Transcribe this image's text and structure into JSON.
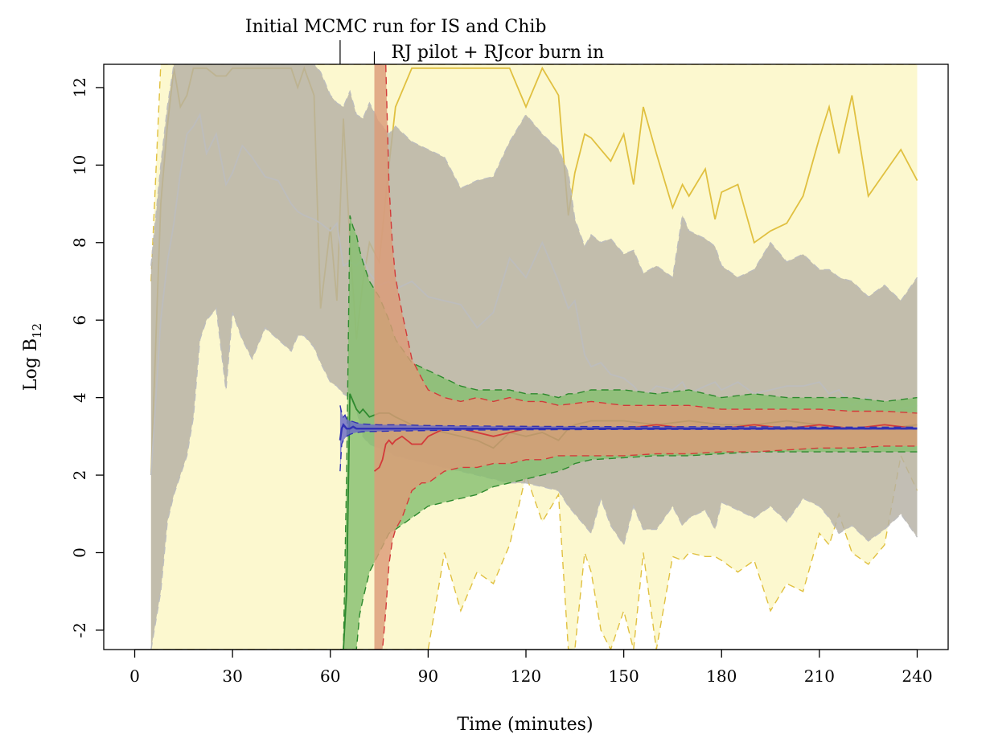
{
  "chart_data": {
    "type": "line",
    "title": "",
    "xlabel": "Time (minutes)",
    "ylabel_main": "Log B",
    "ylabel_sub": "12",
    "xlim": [
      -9.5,
      249.5
    ],
    "ylim": [
      -2.5,
      12.6
    ],
    "xticks": [
      "0",
      "30",
      "60",
      "90",
      "120",
      "150",
      "180",
      "210",
      "240"
    ],
    "xtick_values": [
      0,
      30,
      60,
      90,
      120,
      150,
      180,
      210,
      240
    ],
    "yticks": [
      "-2",
      "0",
      "2",
      "4",
      "6",
      "8",
      "10",
      "12"
    ],
    "ytick_values": [
      -2,
      0,
      2,
      4,
      6,
      8,
      10,
      12
    ],
    "grid": false,
    "annotations": [
      {
        "text": "Initial MCMC run for IS and Chib",
        "x": 63
      },
      {
        "text": "RJ pilot + RJcor burn in",
        "x": 73.5
      }
    ],
    "series": [
      {
        "color": "#e0c040",
        "band_color": "#fcf8cf",
        "x": [
          5,
          8,
          10,
          12,
          14,
          16,
          18,
          20,
          22,
          25,
          28,
          30,
          33,
          36,
          40,
          44,
          48,
          50,
          52,
          55,
          57,
          60,
          62,
          64,
          66,
          68,
          70,
          72,
          75,
          78,
          80,
          85,
          90,
          95,
          100,
          105,
          110,
          115,
          120,
          125,
          130,
          133,
          135,
          138,
          140,
          143,
          146,
          150,
          153,
          156,
          160,
          165,
          168,
          170,
          175,
          178,
          180,
          185,
          190,
          195,
          200,
          205,
          210,
          213,
          216,
          220,
          225,
          230,
          235,
          240
        ],
        "mean": [
          2,
          9,
          11,
          12.5,
          11.5,
          11.8,
          12.5,
          12.5,
          12.5,
          12.3,
          12.3,
          12.5,
          12.5,
          12.5,
          12.5,
          12.5,
          12.5,
          12,
          12.5,
          11.8,
          6.3,
          8.4,
          6.5,
          11.2,
          8,
          5.5,
          7,
          8,
          7.5,
          10,
          11.5,
          12.5,
          12.5,
          12.5,
          12.5,
          12.5,
          12.5,
          12.5,
          11.5,
          12.5,
          11.8,
          8.7,
          9.8,
          10.8,
          10.7,
          10.4,
          10.1,
          10.8,
          9.5,
          11.5,
          10.3,
          8.9,
          9.5,
          9.2,
          9.9,
          8.6,
          9.3,
          9.5,
          8,
          8.3,
          8.5,
          9.2,
          10.7,
          11.5,
          10.3,
          11.8,
          9.2,
          9.8,
          10.4,
          9.6
        ],
        "upper": [
          7,
          12.6,
          12.6,
          12.6,
          12.6,
          12.6,
          12.6,
          12.6,
          12.6,
          12.6,
          12.6,
          12.6,
          12.6,
          12.6,
          12.6,
          12.6,
          12.6,
          12.6,
          12.6,
          12.6,
          12.6,
          12.6,
          12.6,
          12.6,
          12.6,
          12.6,
          12.6,
          12.6,
          12.6,
          12.6,
          12.6,
          12.6,
          12.6,
          12.6,
          12.6,
          12.6,
          12.6,
          12.6,
          12.6,
          12.6,
          12.6,
          12.6,
          12.6,
          12.6,
          12.6,
          12.6,
          12.6,
          12.6,
          12.6,
          12.6,
          12.6,
          12.6,
          12.6,
          12.6,
          12.6,
          12.6,
          12.6,
          12.6,
          12.6,
          12.6,
          12.6,
          12.6,
          12.6,
          12.6,
          12.6,
          12.6,
          12.6,
          12.6,
          12.6,
          12.6
        ],
        "lower": [
          -2.5,
          -2.5,
          -2.5,
          -2.5,
          -2.5,
          -2.5,
          -2.5,
          -2.5,
          -2.5,
          -2.5,
          -2.5,
          -2.5,
          -2.5,
          -2.5,
          -2.5,
          -2.5,
          -2.5,
          -2.5,
          -2.5,
          -2.5,
          -2.5,
          -2.5,
          -2.5,
          -2.5,
          -2.5,
          -2.5,
          -2.5,
          -2.5,
          -2.5,
          -2.5,
          -2.5,
          -2.5,
          -2.5,
          0,
          -1.5,
          -0.5,
          -0.8,
          0.2,
          2,
          0.8,
          1.5,
          -2.5,
          -2.5,
          0,
          -0.5,
          -2,
          -2.5,
          -1.5,
          -2.5,
          0,
          -2.5,
          -0.1,
          -0.2,
          0,
          -0.1,
          -0.1,
          -0.2,
          -0.5,
          -0.2,
          -1.5,
          -0.8,
          -1,
          0.5,
          0.2,
          1,
          0,
          -0.3,
          0.2,
          2.5,
          1.6
        ]
      },
      {
        "color": "#bdbdbd",
        "band_color": "#b5b0a4",
        "x": [
          5,
          8,
          10,
          12,
          14,
          16,
          18,
          20,
          22,
          25,
          28,
          30,
          33,
          36,
          40,
          44,
          48,
          50,
          52,
          55,
          57,
          60,
          62,
          64,
          66,
          68,
          70,
          72,
          75,
          78,
          80,
          85,
          90,
          95,
          100,
          105,
          110,
          115,
          120,
          125,
          130,
          133,
          135,
          138,
          140,
          143,
          146,
          150,
          153,
          156,
          160,
          165,
          168,
          170,
          175,
          178,
          180,
          185,
          190,
          195,
          200,
          205,
          210,
          213,
          216,
          220,
          225,
          230,
          235,
          240
        ],
        "mean": [
          2,
          6,
          7.5,
          8.5,
          9.8,
          10.8,
          11,
          11.3,
          10.3,
          10.8,
          9.5,
          9.8,
          10.5,
          10.2,
          9.7,
          9.6,
          9,
          8.8,
          8.7,
          8.6,
          8.5,
          8.3,
          8.5,
          7.4,
          7.5,
          7.4,
          7.6,
          7.2,
          6.9,
          7,
          6.8,
          7,
          6.6,
          6.5,
          6.4,
          5.8,
          6.2,
          7.6,
          7.1,
          8,
          7,
          6.3,
          6.5,
          5.1,
          4.8,
          4.9,
          4.6,
          4.5,
          4.3,
          4,
          4.3,
          4.2,
          4.4,
          4.1,
          4.3,
          4.4,
          4.2,
          4.4,
          4.1,
          4.2,
          4.3,
          4.3,
          4.4,
          4.1,
          4.2,
          3.8,
          4,
          3.5,
          3.7,
          3.8
        ],
        "upper": [
          7.4,
          10,
          11.5,
          12.6,
          12.6,
          12.6,
          12.6,
          12.6,
          12.6,
          12.6,
          12.6,
          12.6,
          12.6,
          12.6,
          12.6,
          12.6,
          12.6,
          12.6,
          12.6,
          12.6,
          12.4,
          11.8,
          11.6,
          11.5,
          11.9,
          11.3,
          11.2,
          11.6,
          11.1,
          10.8,
          11.0,
          10.6,
          10.4,
          10.2,
          9.4,
          9.6,
          9.7,
          10.6,
          11.3,
          10.8,
          10.4,
          9.8,
          8.6,
          7.9,
          8.2,
          8,
          8.1,
          7.7,
          7.8,
          7.2,
          7.4,
          7.1,
          8.7,
          8.3,
          8.1,
          7.9,
          7.4,
          7.1,
          7.3,
          8.0,
          7.5,
          7.7,
          7.3,
          7.3,
          7.1,
          7,
          6.6,
          6.9,
          6.5,
          7.1
        ],
        "lower": [
          -2.5,
          -1,
          0.8,
          1.5,
          2,
          2.5,
          3.5,
          5.5,
          6,
          6.3,
          4.2,
          6.2,
          5.5,
          5,
          5.8,
          5.5,
          5.2,
          5.6,
          5.6,
          5.3,
          4.9,
          4.4,
          4.3,
          4.1,
          4,
          3.7,
          3,
          2.8,
          2.7,
          2.6,
          2.5,
          2.4,
          2.3,
          2.2,
          2.1,
          2,
          1.9,
          1.8,
          1.8,
          1.7,
          1.6,
          1.2,
          1.0,
          0.7,
          0.5,
          1.4,
          0.7,
          0.2,
          1.2,
          0.6,
          0.6,
          1.2,
          0.7,
          0.9,
          1.1,
          0.6,
          1.3,
          1.1,
          0.9,
          1.2,
          0.8,
          1.4,
          1.2,
          0.9,
          0.5,
          0.7,
          0.3,
          0.6,
          1.0,
          0.4
        ]
      },
      {
        "color": "#2e8a2e",
        "band_color": "#86c070",
        "x": [
          63,
          64,
          65,
          66,
          67,
          68,
          69,
          70,
          72,
          75,
          78,
          80,
          85,
          90,
          95,
          100,
          105,
          110,
          115,
          120,
          125,
          130,
          133,
          135,
          140,
          150,
          160,
          170,
          180,
          190,
          200,
          210,
          220,
          230,
          240
        ],
        "mean": [
          -2.5,
          -2.5,
          -1,
          4.1,
          3.9,
          3.7,
          3.6,
          3.7,
          3.5,
          3.6,
          3.6,
          3.5,
          3.3,
          3.2,
          3.1,
          3.0,
          2.9,
          2.7,
          3.1,
          3.0,
          3.1,
          2.9,
          3.2,
          3.3,
          3.4,
          3.4,
          3.3,
          3.4,
          3.3,
          3.3,
          3.4,
          3.3,
          3.2,
          3.2,
          3.3
        ],
        "upper": [
          -2.5,
          -2.5,
          2,
          8.7,
          8.4,
          8.2,
          7.8,
          7.5,
          7,
          6.6,
          6.0,
          5.5,
          4.9,
          4.7,
          4.5,
          4.3,
          4.2,
          4.2,
          4.2,
          4.1,
          4.1,
          4.0,
          4.1,
          4.1,
          4.2,
          4.2,
          4.1,
          4.2,
          4.0,
          4.1,
          4.0,
          4.0,
          4.0,
          3.9,
          4.0
        ],
        "lower": [
          -2.5,
          -2.5,
          -2.5,
          -2.5,
          -2.5,
          -2.5,
          -1.6,
          -1.2,
          -0.5,
          0.0,
          0.5,
          0.6,
          0.9,
          1.2,
          1.3,
          1.4,
          1.5,
          1.7,
          1.8,
          1.9,
          2.0,
          2.1,
          2.2,
          2.3,
          2.4,
          2.45,
          2.5,
          2.5,
          2.55,
          2.6,
          2.6,
          2.6,
          2.6,
          2.6,
          2.6
        ]
      },
      {
        "color": "#d33a3a",
        "band_color": "#dc9b78",
        "x": [
          73.5,
          75,
          76,
          77,
          78,
          79,
          80,
          82,
          85,
          88,
          90,
          95,
          100,
          105,
          110,
          115,
          120,
          125,
          130,
          140,
          150,
          160,
          170,
          180,
          190,
          200,
          210,
          220,
          230,
          240
        ],
        "mean": [
          2.1,
          2.2,
          2.4,
          2.8,
          2.9,
          2.8,
          2.9,
          3.0,
          2.8,
          2.8,
          3.0,
          3.2,
          3.2,
          3.1,
          3.0,
          3.1,
          3.2,
          3.2,
          3.2,
          3.2,
          3.2,
          3.3,
          3.2,
          3.2,
          3.3,
          3.2,
          3.3,
          3.2,
          3.3,
          3.2
        ],
        "upper": [
          12.6,
          12.6,
          12.6,
          12.6,
          9.5,
          8,
          7.1,
          6.2,
          5.0,
          4.5,
          4.2,
          4.0,
          3.9,
          4.0,
          3.9,
          4.0,
          3.9,
          3.9,
          3.8,
          3.9,
          3.8,
          3.8,
          3.8,
          3.7,
          3.7,
          3.7,
          3.7,
          3.65,
          3.65,
          3.6
        ],
        "lower": [
          -2.5,
          -2.5,
          -2.5,
          -1.5,
          -0.3,
          0.3,
          0.6,
          0.9,
          1.6,
          1.8,
          1.8,
          2.1,
          2.2,
          2.2,
          2.3,
          2.3,
          2.4,
          2.4,
          2.5,
          2.5,
          2.5,
          2.55,
          2.55,
          2.6,
          2.6,
          2.65,
          2.7,
          2.7,
          2.75,
          2.75
        ]
      },
      {
        "color": "#3232b4",
        "band_color": "#6a6ac6",
        "x": [
          63,
          63.5,
          64,
          64.5,
          65,
          66,
          67,
          68,
          70,
          75,
          80,
          90,
          100,
          120,
          150,
          180,
          210,
          240
        ],
        "mean": [
          2.9,
          3.2,
          3.3,
          3.25,
          3.2,
          3.2,
          3.25,
          3.2,
          3.2,
          3.2,
          3.2,
          3.2,
          3.2,
          3.2,
          3.2,
          3.2,
          3.2,
          3.2
        ],
        "upper": [
          3.8,
          3.6,
          3.5,
          3.55,
          3.45,
          3.4,
          3.38,
          3.35,
          3.32,
          3.3,
          3.3,
          3.28,
          3.27,
          3.26,
          3.25,
          3.25,
          3.24,
          3.24
        ],
        "lower": [
          2.1,
          2.8,
          2.9,
          2.95,
          3.0,
          3.05,
          3.08,
          3.1,
          3.12,
          3.13,
          3.14,
          3.15,
          3.16,
          3.17,
          3.18,
          3.18,
          3.19,
          3.19
        ]
      }
    ]
  }
}
